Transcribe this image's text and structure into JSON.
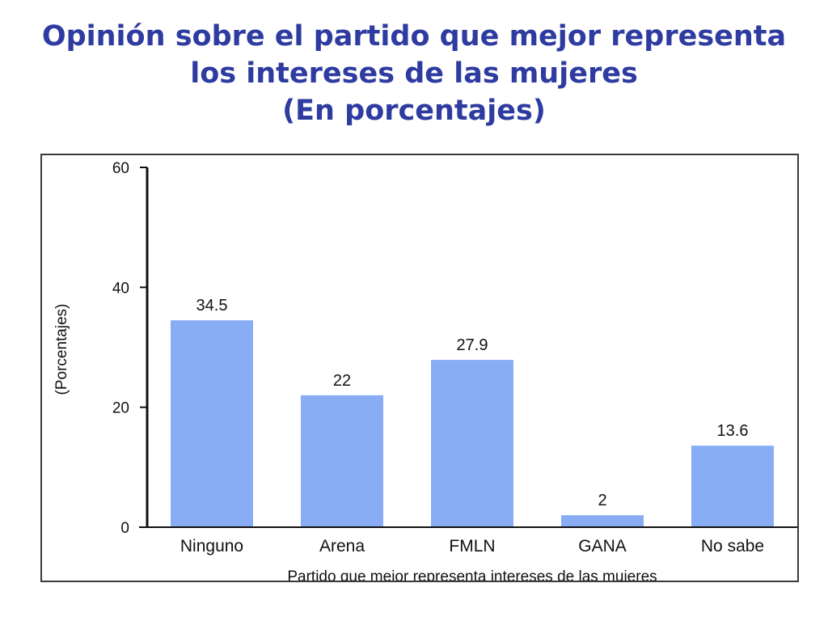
{
  "title": {
    "line1": "Opinión sobre el partido que mejor representa",
    "line2": "los intereses de las mujeres",
    "line3": "(En porcentajes)"
  },
  "colors": {
    "title": "#2e3ba0",
    "bar": "#89adf5",
    "axis": "#111111"
  },
  "chart_data": {
    "type": "bar",
    "title": "Opinión sobre el partido que mejor representa los intereses de las mujeres (En porcentajes)",
    "categories": [
      "Ninguno",
      "Arena",
      "FMLN",
      "GANA",
      "No sabe"
    ],
    "values": [
      34.5,
      22,
      27.9,
      2,
      13.6
    ],
    "data_labels": [
      "34.5",
      "22",
      "27.9",
      "2",
      "13.6"
    ],
    "xlabel": "Partido que mejor representa intereses de las mujeres",
    "ylabel": "(Porcentajes)",
    "ylim": [
      0,
      60
    ],
    "yticks": [
      0,
      20,
      40,
      60
    ],
    "grid": false,
    "legend": "none"
  }
}
